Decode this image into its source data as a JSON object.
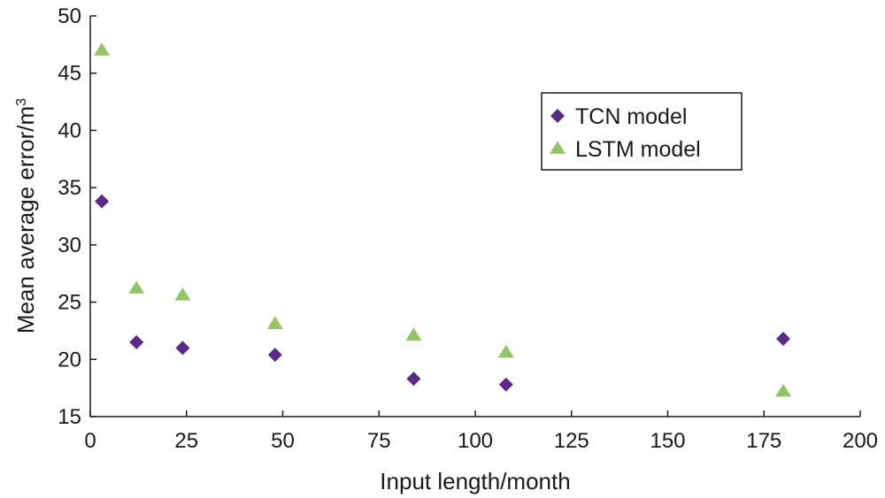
{
  "chart_data": {
    "type": "scatter",
    "title": "",
    "xlabel": "Input length/month",
    "ylabel": "Mean average error/m",
    "ylabel_sup": "3",
    "xlim": [
      0,
      200
    ],
    "ylim": [
      15,
      50
    ],
    "xticks": [
      "0",
      "25",
      "50",
      "75",
      "100",
      "125",
      "150",
      "175",
      "200"
    ],
    "yticks": [
      "15",
      "20",
      "25",
      "30",
      "35",
      "40",
      "45",
      "50"
    ],
    "grid": false,
    "legend_position": "upper-right",
    "series": [
      {
        "name": "TCN model",
        "marker": "diamond",
        "color": "#5b2a86",
        "points": [
          [
            3,
            33.8
          ],
          [
            12,
            21.5
          ],
          [
            24,
            21.0
          ],
          [
            48,
            20.4
          ],
          [
            84,
            18.3
          ],
          [
            108,
            17.8
          ],
          [
            180,
            21.8
          ]
        ]
      },
      {
        "name": "LSTM model",
        "marker": "triangle",
        "color": "#93c565",
        "points": [
          [
            3,
            47.0
          ],
          [
            12,
            26.2
          ],
          [
            24,
            25.6
          ],
          [
            48,
            23.1
          ],
          [
            84,
            22.1
          ],
          [
            108,
            20.6
          ],
          [
            180,
            17.2
          ]
        ]
      }
    ]
  }
}
